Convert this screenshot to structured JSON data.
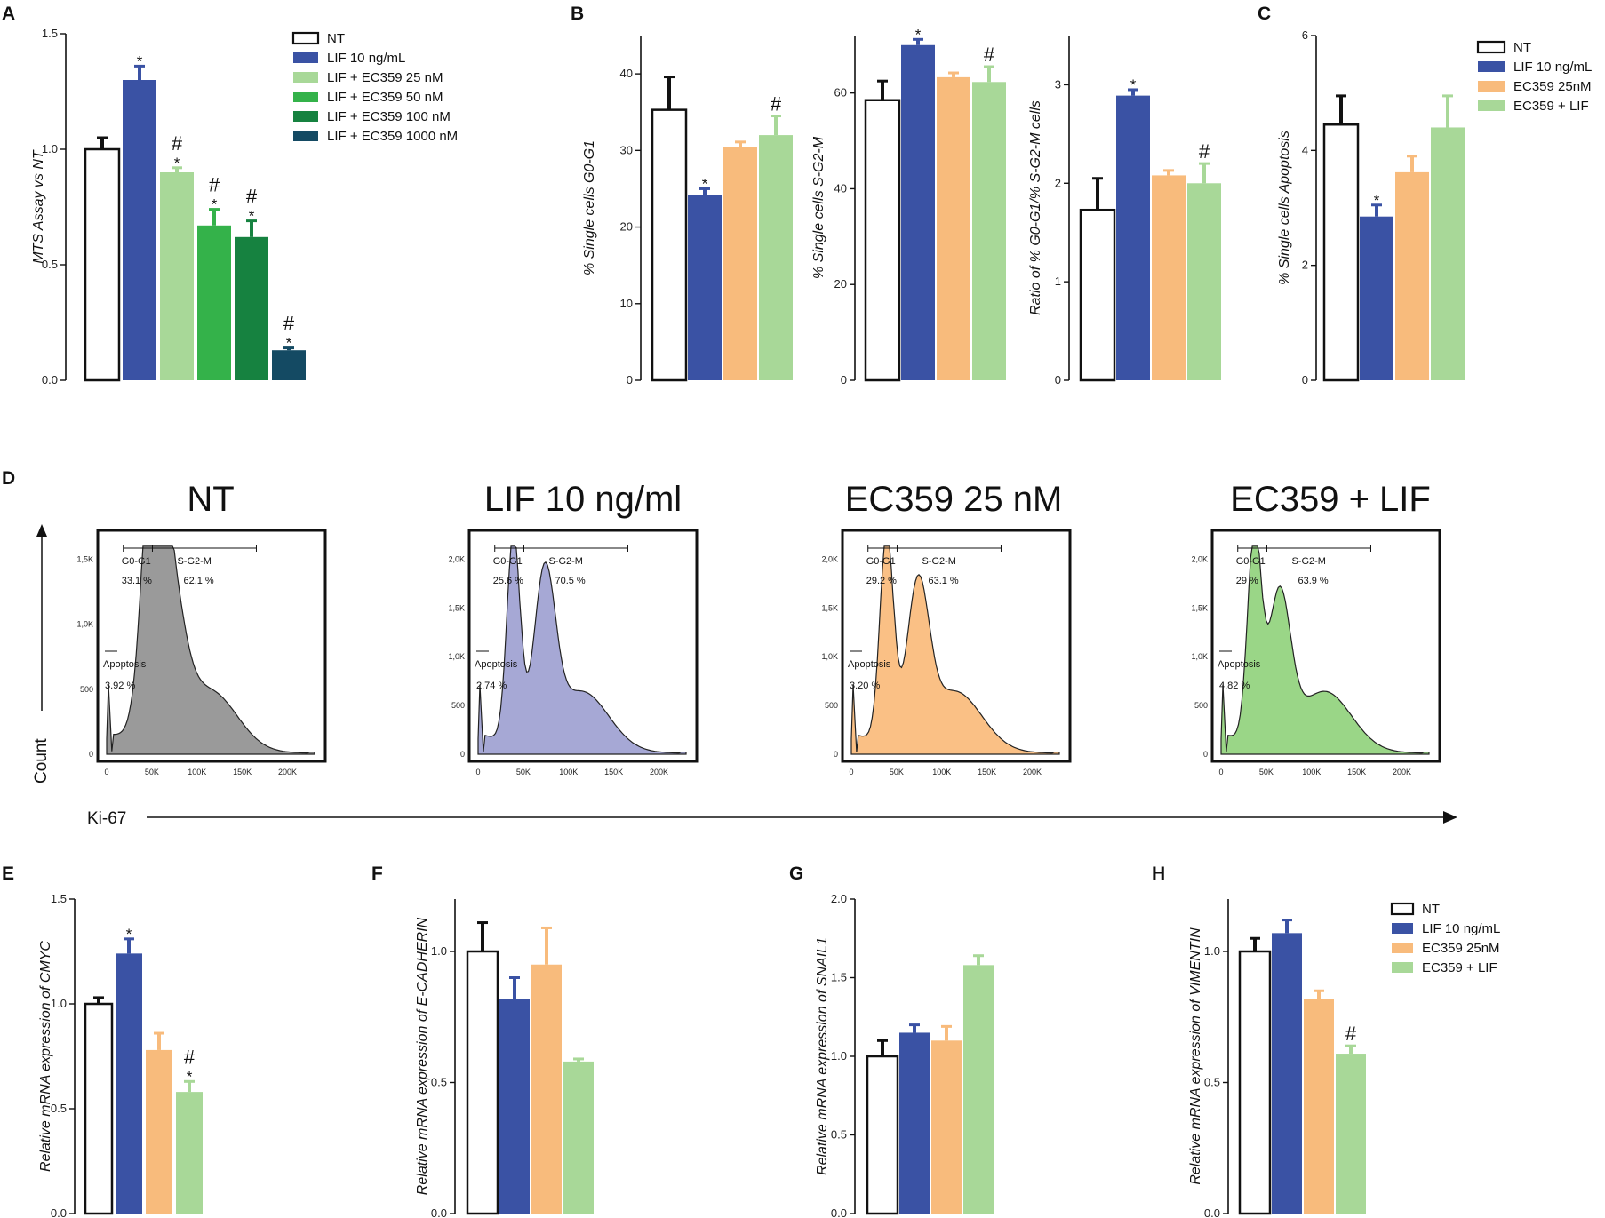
{
  "colors": {
    "NT": "#ffffff",
    "LIF": "#3a52a4",
    "EC25": "#a8d898",
    "EC50": "#34b24a",
    "EC100": "#168240",
    "EC1000": "#144a63",
    "ECo": "#f8bb7c",
    "ECL": "#a8d898",
    "histNT": "#8f8f8f",
    "histLIF": "#9c9ed0",
    "histEC": "#f9b978",
    "histECL": "#8fd17a"
  },
  "panel_labels": [
    "A",
    "B",
    "C",
    "D",
    "E",
    "F",
    "G",
    "H"
  ],
  "legend_A": [
    "NT",
    "LIF 10 ng/mL",
    "LIF + EC359   25 nM",
    "LIF + EC359   50 nM",
    "LIF + EC359  100 nM",
    "LIF + EC359 1000 nM"
  ],
  "legend_C": [
    "NT",
    "LIF 10 ng/mL",
    "EC359 25nM",
    "EC359 + LIF"
  ],
  "legend_H": [
    "NT",
    "LIF 10 ng/mL",
    "EC359 25nM",
    "EC359 + LIF"
  ],
  "sig_star": "*",
  "sig_hash": "#",
  "chart_data": [
    {
      "id": "A",
      "type": "bar",
      "ylabel": "MTS Assay vs NT",
      "ylim": [
        0,
        1.5
      ],
      "yticks": [
        "0.0",
        "0.5",
        "1.0",
        "1.5"
      ],
      "categories": [
        "NT",
        "LIF 10 ng/mL",
        "LIF + EC359 25 nM",
        "LIF + EC359 50 nM",
        "LIF + EC359 100 nM",
        "LIF + EC359 1000 nM"
      ],
      "values": [
        1.0,
        1.3,
        0.9,
        0.67,
        0.62,
        0.13
      ],
      "errors": [
        0.05,
        0.06,
        0.02,
        0.07,
        0.07,
        0.01
      ],
      "stars": [
        false,
        true,
        true,
        true,
        true,
        true
      ],
      "hashes": [
        false,
        false,
        true,
        true,
        true,
        true
      ],
      "colors": [
        "NT",
        "LIF",
        "EC25",
        "EC50",
        "EC100",
        "EC1000"
      ]
    },
    {
      "id": "B1",
      "type": "bar",
      "ylabel": "% Single cells G0-G1",
      "ylim": [
        0,
        45
      ],
      "yticks": [
        "0",
        "10",
        "20",
        "30",
        "40"
      ],
      "categories": [
        "NT",
        "LIF 10 ng/mL",
        "EC359 25nM",
        "EC359 + LIF"
      ],
      "values": [
        35.3,
        24.2,
        30.5,
        32.0
      ],
      "errors": [
        4.3,
        0.8,
        0.6,
        2.5
      ],
      "stars": [
        false,
        true,
        false,
        false
      ],
      "hashes": [
        false,
        false,
        false,
        true
      ],
      "colors": [
        "NT",
        "LIF",
        "ECo",
        "ECL"
      ]
    },
    {
      "id": "B2",
      "type": "bar",
      "ylabel": "% Single cells S-G2-M",
      "ylim": [
        0,
        72
      ],
      "yticks": [
        "0",
        "20",
        "40",
        "60"
      ],
      "categories": [
        "NT",
        "LIF 10 ng/mL",
        "EC359 25nM",
        "EC359 + LIF"
      ],
      "values": [
        58.5,
        70.0,
        63.3,
        62.3
      ],
      "errors": [
        4.0,
        1.2,
        0.9,
        3.2
      ],
      "stars": [
        false,
        true,
        false,
        false
      ],
      "hashes": [
        false,
        false,
        false,
        true
      ],
      "colors": [
        "NT",
        "LIF",
        "ECo",
        "ECL"
      ]
    },
    {
      "id": "B3",
      "type": "bar",
      "ylabel": "Ratio of % G0-G1/% S-G2-M cells",
      "ylim": [
        0,
        3.5
      ],
      "yticks": [
        "0",
        "1",
        "2",
        "3"
      ],
      "categories": [
        "NT",
        "LIF 10 ng/mL",
        "EC359 25nM",
        "EC359 + LIF"
      ],
      "values": [
        1.73,
        2.89,
        2.08,
        2.0
      ],
      "errors": [
        0.32,
        0.06,
        0.05,
        0.2
      ],
      "stars": [
        false,
        true,
        false,
        false
      ],
      "hashes": [
        false,
        false,
        false,
        true
      ],
      "colors": [
        "NT",
        "LIF",
        "ECo",
        "ECL"
      ]
    },
    {
      "id": "C",
      "type": "bar",
      "ylabel": "% Single cells Apoptosis",
      "ylim": [
        0,
        6
      ],
      "yticks": [
        "0",
        "2",
        "4",
        "6"
      ],
      "categories": [
        "NT",
        "LIF 10 ng/mL",
        "EC359 25nM",
        "EC359 + LIF"
      ],
      "values": [
        4.45,
        2.85,
        3.62,
        4.4
      ],
      "errors": [
        0.5,
        0.2,
        0.28,
        0.55
      ],
      "stars": [
        false,
        true,
        false,
        false
      ],
      "hashes": [
        false,
        false,
        false,
        false
      ],
      "colors": [
        "NT",
        "LIF",
        "ECo",
        "ECL"
      ]
    },
    {
      "id": "E",
      "type": "bar",
      "ylabel": "Relative mRNA expression of CMYC",
      "ylim": [
        0,
        1.5
      ],
      "yticks": [
        "0.0",
        "0.5",
        "1.0",
        "1.5"
      ],
      "categories": [
        "NT",
        "LIF 10 ng/mL",
        "EC359 25nM",
        "EC359 + LIF"
      ],
      "values": [
        1.0,
        1.24,
        0.78,
        0.58
      ],
      "errors": [
        0.03,
        0.07,
        0.08,
        0.05
      ],
      "stars": [
        false,
        true,
        false,
        true
      ],
      "hashes": [
        false,
        false,
        false,
        true
      ],
      "colors": [
        "NT",
        "LIF",
        "ECo",
        "ECL"
      ]
    },
    {
      "id": "F",
      "type": "bar",
      "ylabel": "Relative mRNA expression of E-CADHERIN",
      "ylim": [
        0,
        1.2
      ],
      "yticks": [
        "0.0",
        "0.5",
        "1.0"
      ],
      "categories": [
        "NT",
        "LIF 10 ng/mL",
        "EC359 25nM",
        "EC359 + LIF"
      ],
      "values": [
        1.0,
        0.82,
        0.95,
        0.58
      ],
      "errors": [
        0.11,
        0.08,
        0.14,
        0.01
      ],
      "stars": [
        false,
        false,
        false,
        false
      ],
      "hashes": [
        false,
        false,
        false,
        false
      ],
      "colors": [
        "NT",
        "LIF",
        "ECo",
        "ECL"
      ]
    },
    {
      "id": "G",
      "type": "bar",
      "ylabel": "Relative mRNA expression of SNAIL1",
      "ylim": [
        0,
        2.0
      ],
      "yticks": [
        "0.0",
        "0.5",
        "1.0",
        "1.5",
        "2.0"
      ],
      "categories": [
        "NT",
        "LIF 10 ng/mL",
        "EC359 25nM",
        "EC359 + LIF"
      ],
      "values": [
        1.0,
        1.15,
        1.1,
        1.58
      ],
      "errors": [
        0.1,
        0.05,
        0.09,
        0.06
      ],
      "stars": [
        false,
        false,
        false,
        false
      ],
      "hashes": [
        false,
        false,
        false,
        false
      ],
      "colors": [
        "NT",
        "LIF",
        "ECo",
        "ECL"
      ]
    },
    {
      "id": "H",
      "type": "bar",
      "ylabel": "Relative mRNA expression of VIMENTIN",
      "ylim": [
        0,
        1.2
      ],
      "yticks": [
        "0.0",
        "0.5",
        "1.0"
      ],
      "categories": [
        "NT",
        "LIF 10 ng/mL",
        "EC359 25nM",
        "EC359 + LIF"
      ],
      "values": [
        1.0,
        1.07,
        0.82,
        0.61
      ],
      "errors": [
        0.05,
        0.05,
        0.03,
        0.03
      ],
      "stars": [
        false,
        false,
        false,
        false
      ],
      "hashes": [
        false,
        false,
        false,
        true
      ],
      "colors": [
        "NT",
        "LIF",
        "ECo",
        "ECL"
      ]
    }
  ],
  "histograms": {
    "ylabel": "Count",
    "xlabel": "Ki-67",
    "xticks": [
      "0",
      "50K",
      "100K",
      "150K",
      "200K"
    ],
    "gate_labels": {
      "g0": "G0-G1",
      "sg2m": "S-G2-M",
      "apop": "Apoptosis"
    },
    "panels": [
      {
        "title": "NT",
        "color": "histNT",
        "yticks": [
          "0",
          "500",
          "1,0K",
          "1,5K"
        ],
        "g0": "33.1 %",
        "sg2m": "62.1 %",
        "apop": "3.92 %"
      },
      {
        "title": "LIF 10 ng/ml",
        "color": "histLIF",
        "yticks": [
          "0",
          "500",
          "1,0K",
          "1,5K",
          "2,0K"
        ],
        "g0": "25.6 %",
        "sg2m": "70.5 %",
        "apop": "2.74 %"
      },
      {
        "title": "EC359 25 nM",
        "color": "histEC",
        "yticks": [
          "0",
          "500",
          "1,0K",
          "1,5K",
          "2,0K"
        ],
        "g0": "29.2 %",
        "sg2m": "63.1 %",
        "apop": "3.20 %"
      },
      {
        "title": "EC359 + LIF",
        "color": "histECL",
        "yticks": [
          "0",
          "500",
          "1,0K",
          "1,5K",
          "2,0K"
        ],
        "g0": "29 %",
        "sg2m": "63.9 %",
        "apop": "4.82 %"
      }
    ]
  }
}
